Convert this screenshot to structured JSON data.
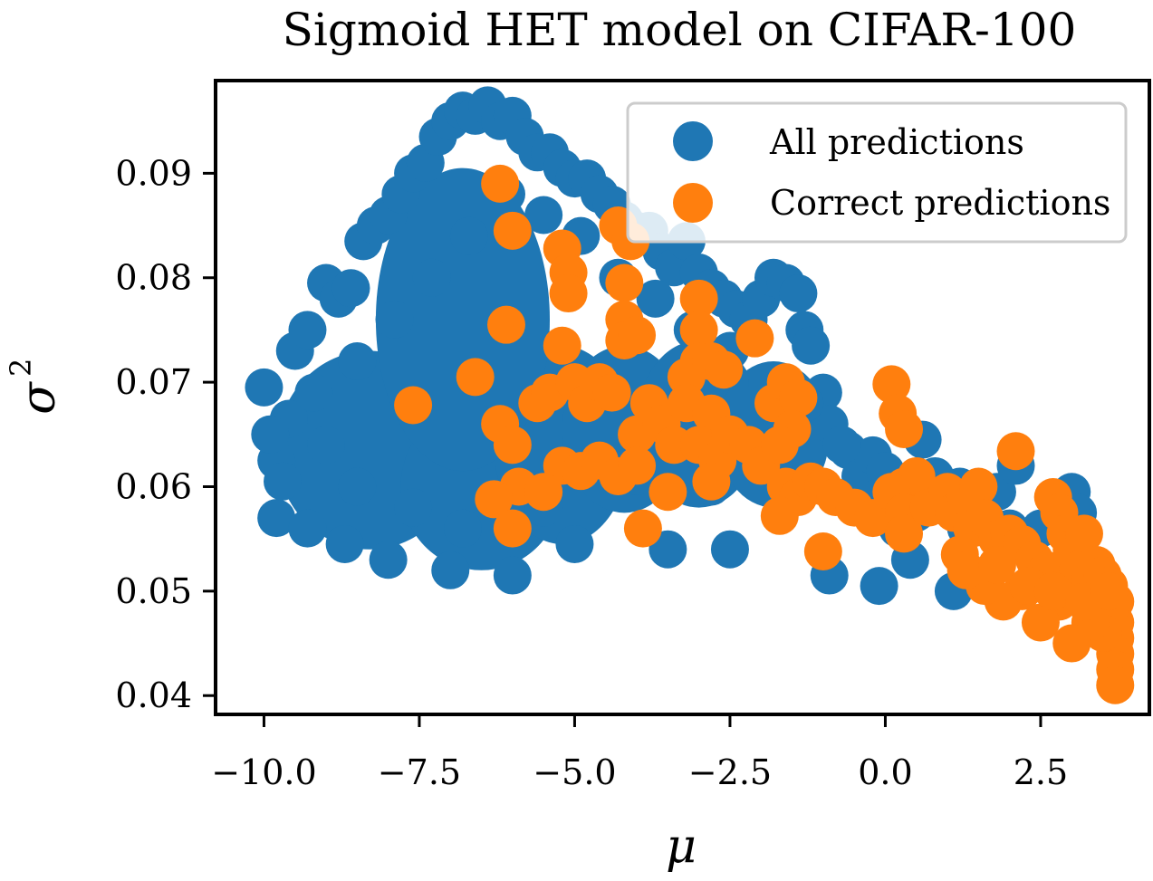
{
  "chart_data": {
    "type": "scatter",
    "title": "Sigmoid HET model on CIFAR-100",
    "xlabel": "μ",
    "ylabel": "σ",
    "ylabel_superscript": "2",
    "xlim": [
      -10.75,
      4.25
    ],
    "ylim": [
      0.0382,
      0.0987
    ],
    "xticks": [
      -10.0,
      -7.5,
      -5.0,
      -2.5,
      0.0,
      2.5
    ],
    "xtick_labels": [
      "−10.0",
      "−7.5",
      "−5.0",
      "−2.5",
      "0.0",
      "2.5"
    ],
    "yticks": [
      0.04,
      0.05,
      0.06,
      0.07,
      0.08,
      0.09
    ],
    "ytick_labels": [
      "0.04",
      "0.05",
      "0.06",
      "0.07",
      "0.08",
      "0.09"
    ],
    "legend_position": "top-right",
    "series": [
      {
        "name": "All predictions",
        "color": "#1f77b4",
        "points": [
          [
            -10.0,
            0.0695
          ],
          [
            -9.8,
            0.0625
          ],
          [
            -9.8,
            0.057
          ],
          [
            -9.6,
            0.0665
          ],
          [
            -9.5,
            0.073
          ],
          [
            -9.3,
            0.075
          ],
          [
            -9.0,
            0.0795
          ],
          [
            -8.8,
            0.078
          ],
          [
            -8.6,
            0.079
          ],
          [
            -8.4,
            0.0835
          ],
          [
            -8.2,
            0.085
          ],
          [
            -8.0,
            0.086
          ],
          [
            -7.8,
            0.088
          ],
          [
            -7.6,
            0.09
          ],
          [
            -7.4,
            0.091
          ],
          [
            -7.2,
            0.0935
          ],
          [
            -7.0,
            0.095
          ],
          [
            -6.8,
            0.096
          ],
          [
            -6.6,
            0.0955
          ],
          [
            -6.4,
            0.0965
          ],
          [
            -6.2,
            0.095
          ],
          [
            -6.0,
            0.0955
          ],
          [
            -5.8,
            0.0935
          ],
          [
            -5.6,
            0.092
          ],
          [
            -5.4,
            0.092
          ],
          [
            -5.2,
            0.0905
          ],
          [
            -5.0,
            0.0895
          ],
          [
            -4.8,
            0.0895
          ],
          [
            -4.6,
            0.088
          ],
          [
            -4.4,
            0.087
          ],
          [
            -4.2,
            0.0855
          ],
          [
            -4.0,
            0.0845
          ],
          [
            -3.8,
            0.0845
          ],
          [
            -3.6,
            0.0825
          ],
          [
            -3.4,
            0.081
          ],
          [
            -3.2,
            0.0835
          ],
          [
            -3.0,
            0.0805
          ],
          [
            -2.8,
            0.079
          ],
          [
            -2.6,
            0.078
          ],
          [
            -2.4,
            0.077
          ],
          [
            -2.2,
            0.076
          ],
          [
            -2.0,
            0.078
          ],
          [
            -1.8,
            0.08
          ],
          [
            -1.6,
            0.0795
          ],
          [
            -1.4,
            0.0785
          ],
          [
            -1.3,
            0.075
          ],
          [
            -1.2,
            0.0735
          ],
          [
            -1.0,
            0.069
          ],
          [
            -0.9,
            0.066
          ],
          [
            -0.6,
            0.0635
          ],
          [
            -0.4,
            0.061
          ],
          [
            -0.2,
            0.063
          ],
          [
            0.0,
            0.0615
          ],
          [
            0.2,
            0.056
          ],
          [
            0.4,
            0.053
          ],
          [
            0.6,
            0.0645
          ],
          [
            0.8,
            0.061
          ],
          [
            1.0,
            0.058
          ],
          [
            1.2,
            0.06
          ],
          [
            1.4,
            0.0585
          ],
          [
            1.6,
            0.057
          ],
          [
            1.8,
            0.0595
          ],
          [
            2.0,
            0.056
          ],
          [
            2.1,
            0.062
          ],
          [
            2.2,
            0.0545
          ],
          [
            2.5,
            0.056
          ],
          [
            2.8,
            0.058
          ],
          [
            3.0,
            0.0595
          ],
          [
            3.1,
            0.0575
          ],
          [
            -0.9,
            0.0515
          ],
          [
            -0.1,
            0.0505
          ],
          [
            1.1,
            0.05
          ],
          [
            -2.5,
            0.054
          ],
          [
            -3.5,
            0.054
          ],
          [
            -5.0,
            0.0545
          ],
          [
            -6.0,
            0.0515
          ],
          [
            -7.0,
            0.052
          ],
          [
            -8.0,
            0.053
          ],
          [
            -8.7,
            0.0545
          ],
          [
            -9.3,
            0.056
          ],
          [
            -9.7,
            0.0605
          ],
          [
            -9.9,
            0.065
          ],
          [
            -9.2,
            0.069
          ],
          [
            -8.5,
            0.072
          ],
          [
            -7.9,
            0.076
          ],
          [
            -7.3,
            0.08
          ],
          [
            -6.7,
            0.084
          ],
          [
            -6.1,
            0.088
          ],
          [
            -5.5,
            0.086
          ],
          [
            -4.9,
            0.084
          ],
          [
            -4.3,
            0.08
          ],
          [
            -3.7,
            0.078
          ],
          [
            -3.1,
            0.075
          ],
          [
            -2.5,
            0.073
          ],
          [
            -1.9,
            0.07
          ],
          [
            -1.3,
            0.068
          ],
          [
            -0.7,
            0.064
          ],
          [
            -0.1,
            0.059
          ],
          [
            0.5,
            0.0575
          ],
          [
            1.3,
            0.056
          ],
          [
            -1.8,
            0.062
          ],
          [
            -2.8,
            0.06
          ],
          [
            -4.0,
            0.061
          ],
          [
            -5.5,
            0.058
          ],
          [
            -6.8,
            0.056
          ],
          [
            -7.6,
            0.058
          ],
          [
            -8.5,
            0.06
          ],
          [
            -9.0,
            0.064
          ]
        ],
        "clusters": [
          {
            "cx": -8.3,
            "cy": 0.0635,
            "rx": 1.5,
            "ry": 0.0095
          },
          {
            "cx": -6.5,
            "cy": 0.06,
            "rx": 1.3,
            "ry": 0.008
          },
          {
            "cx": -5.2,
            "cy": 0.064,
            "rx": 1.1,
            "ry": 0.0095
          },
          {
            "cx": -6.8,
            "cy": 0.076,
            "rx": 1.4,
            "ry": 0.0145
          },
          {
            "cx": -4.2,
            "cy": 0.0655,
            "rx": 1.0,
            "ry": 0.008
          },
          {
            "cx": -3.0,
            "cy": 0.066,
            "rx": 1.0,
            "ry": 0.008
          },
          {
            "cx": -1.8,
            "cy": 0.065,
            "rx": 0.9,
            "ry": 0.007
          }
        ]
      },
      {
        "name": "Correct predictions",
        "color": "#ff7f0e",
        "points": [
          [
            -7.6,
            0.0678
          ],
          [
            -6.6,
            0.0705
          ],
          [
            -6.2,
            0.089
          ],
          [
            -6.0,
            0.0845
          ],
          [
            -6.1,
            0.0755
          ],
          [
            -6.2,
            0.066
          ],
          [
            -6.0,
            0.064
          ],
          [
            -5.9,
            0.06
          ],
          [
            -6.3,
            0.0588
          ],
          [
            -6.0,
            0.056
          ],
          [
            -5.6,
            0.068
          ],
          [
            -5.4,
            0.069
          ],
          [
            -5.2,
            0.0828
          ],
          [
            -5.1,
            0.0805
          ],
          [
            -5.1,
            0.0785
          ],
          [
            -5.2,
            0.0735
          ],
          [
            -5.0,
            0.07
          ],
          [
            -4.8,
            0.068
          ],
          [
            -4.6,
            0.07
          ],
          [
            -4.4,
            0.069
          ],
          [
            -5.2,
            0.062
          ],
          [
            -4.9,
            0.0615
          ],
          [
            -4.6,
            0.0625
          ],
          [
            -4.3,
            0.061
          ],
          [
            -5.5,
            0.0595
          ],
          [
            -4.3,
            0.085
          ],
          [
            -4.1,
            0.0835
          ],
          [
            -4.2,
            0.0795
          ],
          [
            -4.2,
            0.076
          ],
          [
            -4.2,
            0.074
          ],
          [
            -4.0,
            0.0745
          ],
          [
            -4.0,
            0.065
          ],
          [
            -4.0,
            0.062
          ],
          [
            -3.8,
            0.068
          ],
          [
            -3.6,
            0.066
          ],
          [
            -3.4,
            0.064
          ],
          [
            -3.5,
            0.0595
          ],
          [
            -3.9,
            0.056
          ],
          [
            -3.0,
            0.078
          ],
          [
            -3.0,
            0.075
          ],
          [
            -3.0,
            0.072
          ],
          [
            -3.2,
            0.0705
          ],
          [
            -2.8,
            0.072
          ],
          [
            -2.6,
            0.0712
          ],
          [
            -3.2,
            0.068
          ],
          [
            -2.8,
            0.067
          ],
          [
            -3.0,
            0.064
          ],
          [
            -2.7,
            0.0625
          ],
          [
            -2.5,
            0.065
          ],
          [
            -2.8,
            0.0605
          ],
          [
            -2.2,
            0.064
          ],
          [
            -2.0,
            0.062
          ],
          [
            -1.8,
            0.068
          ],
          [
            -1.6,
            0.07
          ],
          [
            -1.4,
            0.0685
          ],
          [
            -1.5,
            0.0655
          ],
          [
            -1.7,
            0.064
          ],
          [
            -2.1,
            0.0742
          ],
          [
            -1.6,
            0.06
          ],
          [
            -1.4,
            0.059
          ],
          [
            -1.7,
            0.0572
          ],
          [
            -1.2,
            0.0605
          ],
          [
            -1.0,
            0.06
          ],
          [
            -0.8,
            0.059
          ],
          [
            -1.0,
            0.0538
          ],
          [
            -0.5,
            0.058
          ],
          [
            -0.2,
            0.057
          ],
          [
            0.1,
            0.0698
          ],
          [
            0.2,
            0.067
          ],
          [
            0.3,
            0.0655
          ],
          [
            0.3,
            0.06
          ],
          [
            0.5,
            0.061
          ],
          [
            0.1,
            0.0595
          ],
          [
            0.3,
            0.0575
          ],
          [
            0.3,
            0.0555
          ],
          [
            0.7,
            0.058
          ],
          [
            1.0,
            0.0595
          ],
          [
            1.1,
            0.0575
          ],
          [
            1.3,
            0.059
          ],
          [
            1.5,
            0.06
          ],
          [
            1.4,
            0.056
          ],
          [
            1.2,
            0.0535
          ],
          [
            1.6,
            0.057
          ],
          [
            1.8,
            0.055
          ],
          [
            2.0,
            0.0555
          ],
          [
            2.1,
            0.0634
          ],
          [
            2.2,
            0.0545
          ],
          [
            2.4,
            0.053
          ],
          [
            2.6,
            0.052
          ],
          [
            2.7,
            0.059
          ],
          [
            2.8,
            0.0575
          ],
          [
            2.9,
            0.0555
          ],
          [
            3.0,
            0.054
          ],
          [
            3.2,
            0.0555
          ],
          [
            3.1,
            0.052
          ],
          [
            3.3,
            0.051
          ],
          [
            3.4,
            0.0525
          ],
          [
            3.5,
            0.0515
          ],
          [
            3.6,
            0.0505
          ],
          [
            3.7,
            0.049
          ],
          [
            3.7,
            0.047
          ],
          [
            3.7,
            0.0455
          ],
          [
            3.7,
            0.044
          ],
          [
            3.7,
            0.0425
          ],
          [
            3.7,
            0.041
          ],
          [
            3.6,
            0.048
          ],
          [
            3.5,
            0.046
          ],
          [
            3.3,
            0.047
          ],
          [
            3.0,
            0.045
          ],
          [
            2.8,
            0.049
          ],
          [
            2.5,
            0.047
          ],
          [
            2.2,
            0.05
          ],
          [
            1.9,
            0.049
          ],
          [
            1.6,
            0.0505
          ],
          [
            1.3,
            0.052
          ],
          [
            1.8,
            0.0525
          ],
          [
            2.3,
            0.0505
          ],
          [
            2.7,
            0.05
          ],
          [
            3.2,
            0.049
          ],
          [
            3.6,
            0.05
          ]
        ]
      }
    ]
  }
}
